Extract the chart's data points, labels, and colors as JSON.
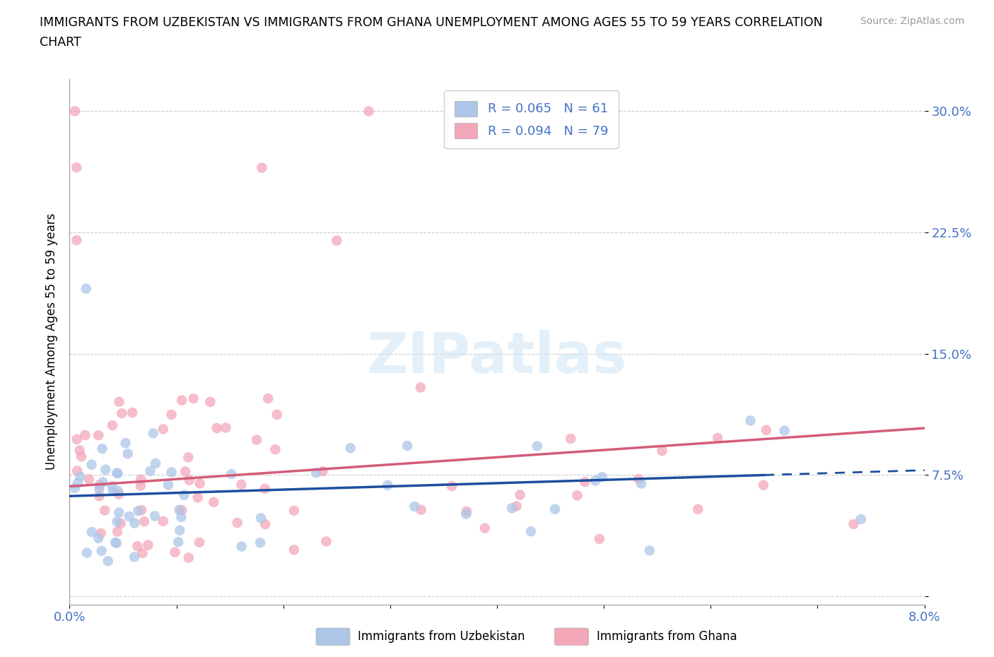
{
  "title": "IMMIGRANTS FROM UZBEKISTAN VS IMMIGRANTS FROM GHANA UNEMPLOYMENT AMONG AGES 55 TO 59 YEARS CORRELATION\nCHART",
  "source_text": "Source: ZipAtlas.com",
  "ylabel": "Unemployment Among Ages 55 to 59 years",
  "xmin": 0.0,
  "xmax": 0.08,
  "ymin": -0.005,
  "ymax": 0.32,
  "yticks": [
    0.0,
    0.075,
    0.15,
    0.225,
    0.3
  ],
  "ytick_labels": [
    "",
    "7.5%",
    "15.0%",
    "22.5%",
    "30.0%"
  ],
  "watermark_text": "ZIPatlas",
  "axis_color": "#4472c4",
  "grid_color": "#cccccc",
  "uzbekistan_color": "#adc6e8",
  "uzbekistan_line_color": "#1f4e9e",
  "ghana_color": "#f4a7b9",
  "ghana_line_color": "#d45c7a",
  "uzbekistan_R": 0.065,
  "uzbekistan_N": 61,
  "ghana_R": 0.094,
  "ghana_N": 79,
  "background_color": "#ffffff"
}
